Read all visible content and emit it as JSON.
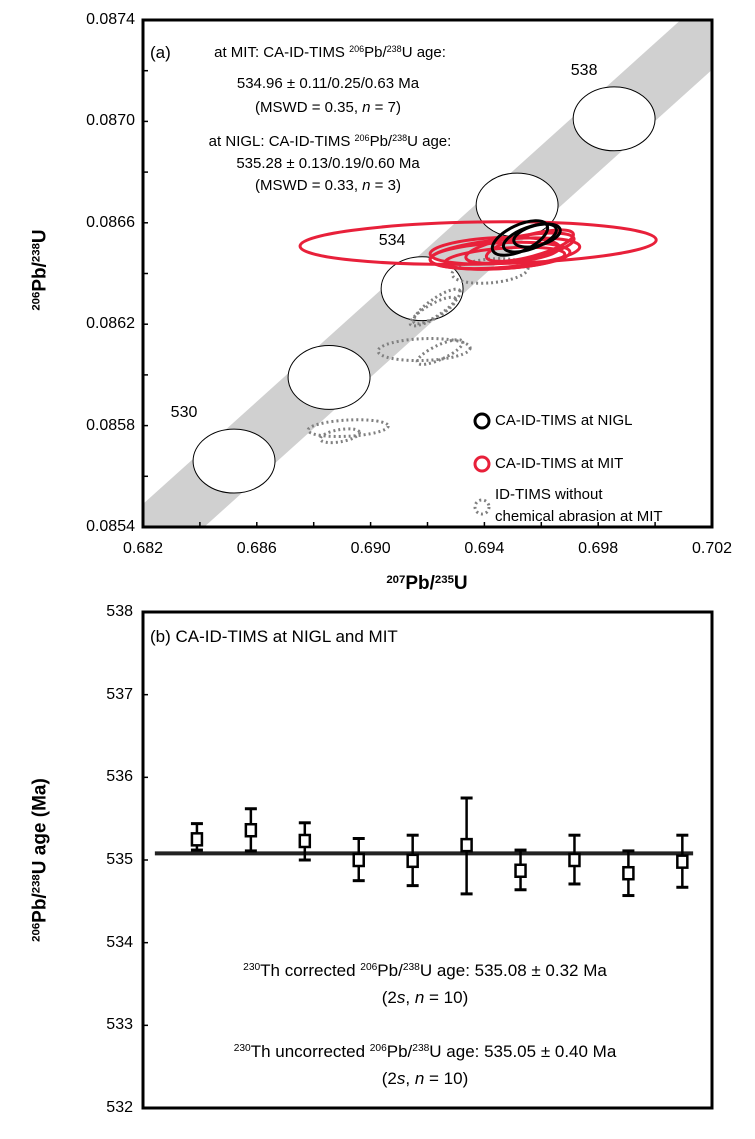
{
  "chart_data": [
    {
      "type": "scatter",
      "panel_label": "(a)",
      "xlabel": {
        "sup1": "207",
        "base1": "Pb/",
        "sup2": "235",
        "base2": "U"
      },
      "ylabel": {
        "sup1": "206",
        "base1": "Pb/",
        "sup2": "238",
        "base2": "U"
      },
      "xlim": [
        0.682,
        0.702
      ],
      "ylim": [
        0.0854,
        0.0874
      ],
      "x_ticks": [
        "0.682",
        "0.686",
        "0.690",
        "0.694",
        "0.698",
        "0.702"
      ],
      "y_ticks": [
        "0.0874",
        "0.0870",
        "0.0866",
        "0.0862",
        "0.0858",
        "0.0854"
      ],
      "concordia_band_color": "#d0d0d0",
      "concordia_markers": [
        {
          "age": 530,
          "label": "530",
          "x": 0.6852,
          "y": 0.08566
        },
        {
          "age": 532,
          "label": "",
          "x": 0.68854,
          "y": 0.08599
        },
        {
          "age": 534,
          "label": "534",
          "x": 0.69181,
          "y": 0.08634
        },
        {
          "age": 536,
          "label": "",
          "x": 0.69515,
          "y": 0.08667
        },
        {
          "age": 538,
          "label": "538",
          "x": 0.69856,
          "y": 0.08701
        }
      ],
      "marker_radii": {
        "x": 0.00144,
        "y": 0.000126
      },
      "annotations": {
        "mit": {
          "pre": "at MIT: CA-ID-TIMS ",
          "sup1": "206",
          "mid": "Pb/",
          "sup2": "238",
          "post": "U age:",
          "line2": "534.96 ± 0.11/0.25/0.63 Ma",
          "line3_pre": "(MSWD = 0.35, ",
          "line3_n": "n",
          "line3_post": " = 7)"
        },
        "nigl": {
          "pre": "at NIGL: CA-ID-TIMS ",
          "sup1": "206",
          "mid": "Pb/",
          "sup2": "238",
          "post": "U age:",
          "line2": "535.28 ± 0.13/0.19/0.60 Ma",
          "line3_pre": "(MSWD = 0.33, ",
          "line3_n": "n",
          "line3_post": " = 3)"
        }
      },
      "series": [
        {
          "name": "CA-ID-TIMS at NIGL",
          "color": "#000000",
          "style": "solid",
          "ellipses": [
            {
              "x": 0.69525,
              "y": 0.08654,
              "rx": 0.00105,
              "ry": 5.1e-05,
              "rot": -25
            },
            {
              "x": 0.6956,
              "y": 0.08654,
              "rx": 0.00098,
              "ry": 4.3e-05,
              "rot": -20
            },
            {
              "x": 0.69585,
              "y": 0.08655,
              "rx": 0.00084,
              "ry": 4e-05,
              "rot": -15
            }
          ]
        },
        {
          "name": "CA-ID-TIMS at MIT",
          "color": "#e8203a",
          "style": "solid",
          "ellipses": [
            {
              "x": 0.69378,
              "y": 0.08652,
              "rx": 0.00626,
              "ry": 8.3e-05,
              "rot": -1
            },
            {
              "x": 0.69472,
              "y": 0.08648,
              "rx": 0.00264,
              "ry": 5.5e-05,
              "rot": -5
            },
            {
              "x": 0.69455,
              "y": 0.08647,
              "rx": 0.00246,
              "ry": 5.1e-05,
              "rot": -3
            },
            {
              "x": 0.69525,
              "y": 0.0865,
              "rx": 0.00193,
              "ry": 4.7e-05,
              "rot": -10
            },
            {
              "x": 0.69472,
              "y": 0.08646,
              "rx": 0.00211,
              "ry": 4e-05,
              "rot": -4
            },
            {
              "x": 0.6956,
              "y": 0.08651,
              "rx": 0.00158,
              "ry": 4.3e-05,
              "rot": -15
            },
            {
              "x": 0.69437,
              "y": 0.08649,
              "rx": 0.00228,
              "ry": 5.1e-05,
              "rot": -3
            }
          ]
        },
        {
          "name": "ID-TIMS without chemical abrasion at MIT",
          "name_line1": "ID-TIMS without",
          "name_line2": "chemical abrasion at MIT",
          "color": "#808080",
          "style": "dotted",
          "ellipses": [
            {
              "x": 0.6942,
              "y": 0.08641,
              "rx": 0.00134,
              "ry": 4.7e-05,
              "rot": -5
            },
            {
              "x": 0.69233,
              "y": 0.08627,
              "rx": 0.00098,
              "ry": 3.2e-05,
              "rot": -35
            },
            {
              "x": 0.69219,
              "y": 0.08625,
              "rx": 0.00091,
              "ry": 2.8e-05,
              "rot": -30
            },
            {
              "x": 0.69188,
              "y": 0.0861,
              "rx": 0.00162,
              "ry": 4.3e-05,
              "rot": -2
            },
            {
              "x": 0.69244,
              "y": 0.08609,
              "rx": 0.00088,
              "ry": 2.8e-05,
              "rot": -25
            },
            {
              "x": 0.68921,
              "y": 0.08579,
              "rx": 0.00141,
              "ry": 3.2e-05,
              "rot": -3
            },
            {
              "x": 0.68892,
              "y": 0.08576,
              "rx": 0.0007,
              "ry": 2.4e-05,
              "rot": -10
            }
          ]
        }
      ],
      "legend": "bottom-right"
    },
    {
      "type": "scatter",
      "panel_label": "(b) CA-ID-TIMS at NIGL and MIT",
      "ylabel": {
        "sup1": "206",
        "base1": "Pb/",
        "sup2": "238",
        "base2": "U age (Ma)"
      },
      "ylim": [
        532,
        538
      ],
      "y_ticks": [
        "538",
        "537",
        "536",
        "535",
        "534",
        "533",
        "532"
      ],
      "xlim": [
        0,
        10.55
      ],
      "x": [
        1,
        2,
        3,
        4,
        5,
        6,
        7,
        8,
        9,
        10
      ],
      "values": [
        535.25,
        535.36,
        535.23,
        535.0,
        534.99,
        535.18,
        534.87,
        535.0,
        534.84,
        534.98
      ],
      "err_upper": [
        535.44,
        535.62,
        535.45,
        535.26,
        535.3,
        535.75,
        535.12,
        535.3,
        535.11,
        535.3
      ],
      "err_lower": [
        535.12,
        535.11,
        535.0,
        534.75,
        534.69,
        534.59,
        534.64,
        534.71,
        534.57,
        534.67
      ],
      "mean_line": {
        "value": 535.08,
        "x_from": 0.22,
        "x_to": 10.2
      },
      "annotations": {
        "corrected": {
          "sup0": "230",
          "pre": "Th corrected ",
          "sup1": "206",
          "mid": "Pb/",
          "sup2": "238",
          "post": "U age: 535.08 ± 0.32 Ma",
          "line2_pre": "(2",
          "line2_s": "s",
          "line2_mid": ", ",
          "line2_n": "n",
          "line2_post": " = 10)"
        },
        "uncorrected": {
          "sup0": "230",
          "pre": "Th uncorrected ",
          "sup1": "206",
          "mid": "Pb/",
          "sup2": "238",
          "post": "U age: 535.05 ± 0.40 Ma",
          "line2_pre": "(2",
          "line2_s": "s",
          "line2_mid": ", ",
          "line2_n": "n",
          "line2_post": " = 10)"
        }
      }
    }
  ]
}
